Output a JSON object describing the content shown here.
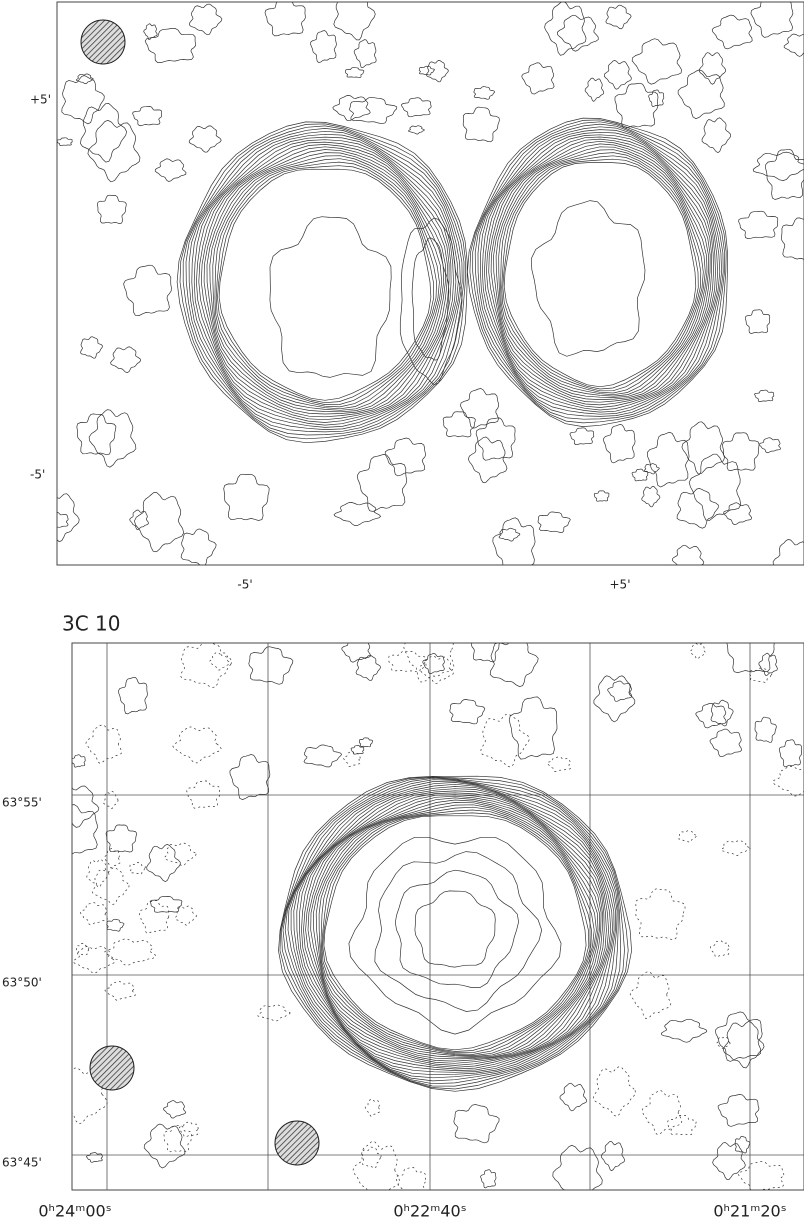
{
  "top_panel": {
    "y_labels": [
      "+5'",
      "-5'"
    ],
    "x_labels": [
      "-5'",
      "+5'"
    ]
  },
  "bottom_panel": {
    "title": "3C 10",
    "y_labels": [
      "63°55'",
      "63°50'",
      "63°45'"
    ],
    "x_labels": [
      "0ʰ24ᵐ00ˢ",
      "0ʰ22ᵐ40ˢ",
      "0ʰ21ᵐ20ˢ"
    ]
  }
}
